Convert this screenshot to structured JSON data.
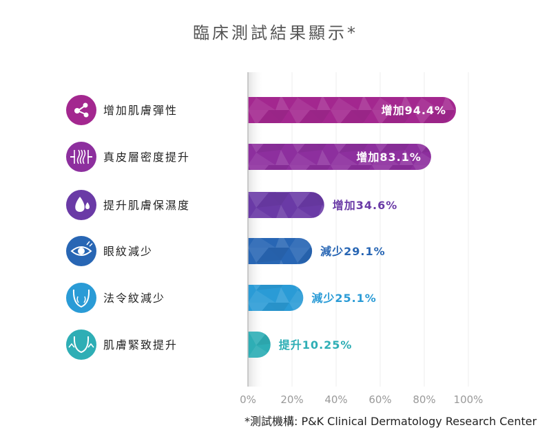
{
  "chart_data": {
    "type": "bar",
    "orientation": "horizontal",
    "title": "臨床測試結果顯示*",
    "categories": [
      "增加肌膚彈性",
      "真皮層密度提升",
      "提升肌膚保濕度",
      "眼紋減少",
      "法令紋減少",
      "肌膚緊致提升"
    ],
    "values": [
      94.4,
      83.1,
      34.6,
      29.1,
      25.1,
      10.25
    ],
    "value_labels": [
      "增加94.4%",
      "增加83.1%",
      "增加34.6%",
      "減少29.1%",
      "減少25.1%",
      "提升10.25%"
    ],
    "icons": [
      "molecule-icon",
      "dermis-density-icon",
      "water-drop-icon",
      "eye-icon",
      "face-nasolabial-icon",
      "face-lift-icon"
    ],
    "colors": [
      "#a3278f",
      "#8d2f9e",
      "#6a3aa6",
      "#2866b4",
      "#2a9bd6",
      "#2eaeb5"
    ],
    "xlim": [
      0,
      100
    ],
    "xticks": [
      "0%",
      "20%",
      "40%",
      "60%",
      "80%",
      "100%"
    ],
    "grid": true,
    "footnote": "*測試機構: P&K Clinical Dermatology Research Center"
  }
}
